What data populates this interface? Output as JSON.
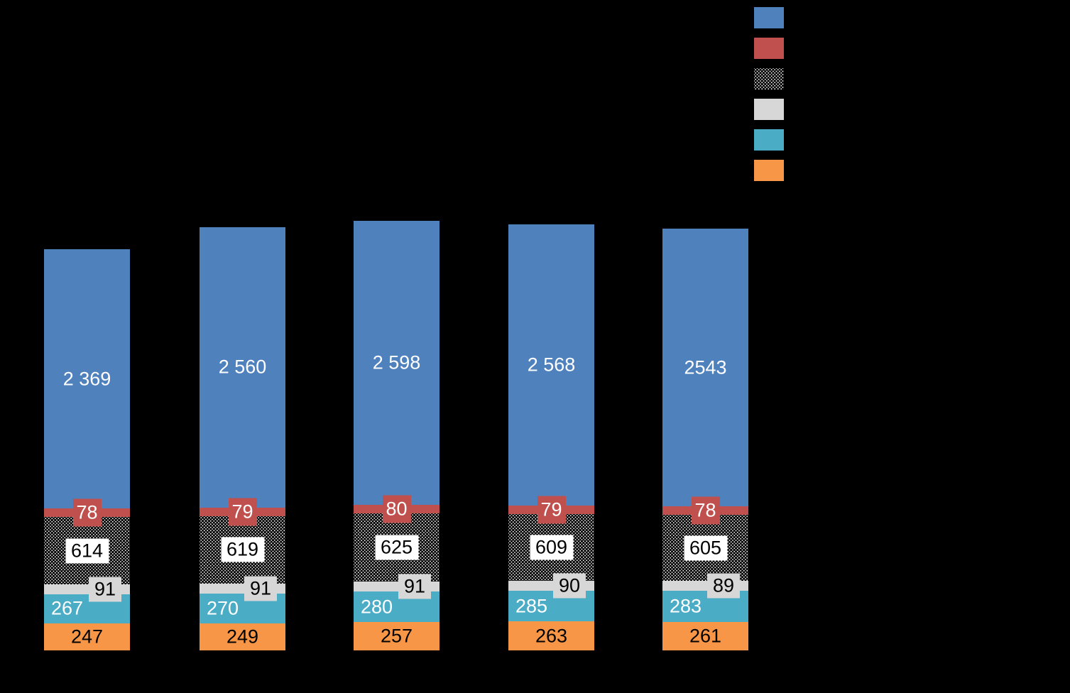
{
  "background": "#000000",
  "chart_data": {
    "type": "bar",
    "stacked": true,
    "bar_count": 5,
    "legend_position": "top-right",
    "legend_text_visible": false,
    "axis_visible": false,
    "series": [
      {
        "id": "blue",
        "color": "#4F81BD",
        "label_color": "#FFFFFF",
        "label_style": "plain-center",
        "values": [
          2369,
          2560,
          2598,
          2568,
          2543
        ],
        "labels": [
          "2 369",
          "2 560",
          "2 598",
          "2 568",
          "2543"
        ]
      },
      {
        "id": "red",
        "color": "#C0504D",
        "label_color": "#FFFFFF",
        "label_style": "box-red-center",
        "values": [
          78,
          79,
          80,
          79,
          78
        ],
        "labels": [
          "78",
          "79",
          "80",
          "79",
          "78"
        ]
      },
      {
        "id": "dotted",
        "color": "pattern-white-dots-on-black",
        "label_color": "#000000",
        "label_style": "box-white-center",
        "values": [
          614,
          619,
          625,
          609,
          605
        ],
        "labels": [
          "614",
          "619",
          "625",
          "609",
          "605"
        ]
      },
      {
        "id": "gray",
        "color": "#D7D7D7",
        "label_color": "#000000",
        "label_style": "box-gray-right",
        "values": [
          91,
          91,
          91,
          90,
          89
        ],
        "labels": [
          "91",
          "91",
          "91",
          "90",
          "89"
        ]
      },
      {
        "id": "teal",
        "color": "#4BACC6",
        "label_color": "#FFFFFF",
        "label_style": "plain-left",
        "values": [
          267,
          270,
          280,
          285,
          283
        ],
        "labels": [
          "267",
          "270",
          "280",
          "285",
          "283"
        ]
      },
      {
        "id": "orange",
        "color": "#F79646",
        "label_color": "#000000",
        "label_style": "plain-center",
        "values": [
          247,
          249,
          257,
          263,
          261
        ],
        "labels": [
          "247",
          "249",
          "257",
          "263",
          "261"
        ]
      }
    ]
  }
}
